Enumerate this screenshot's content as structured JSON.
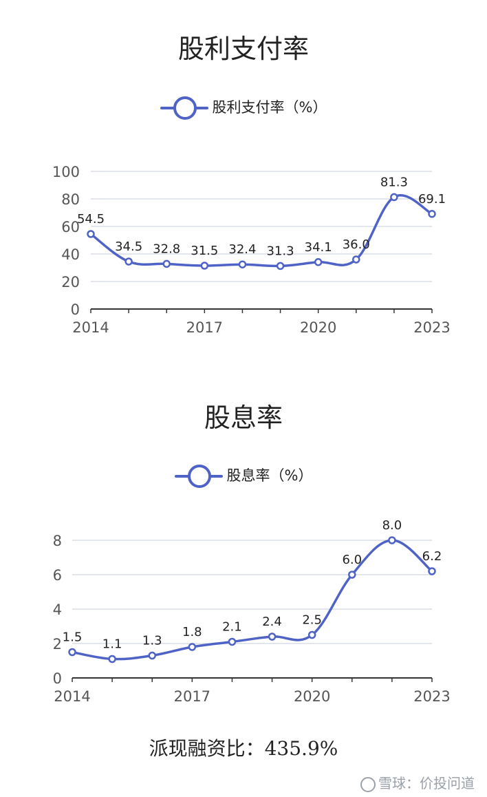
{
  "chart_data": [
    {
      "type": "line",
      "title": "股利支付率",
      "series": [
        {
          "name": "股利支付率（%）",
          "values": [
            54.5,
            34.5,
            32.8,
            31.5,
            32.4,
            31.3,
            34.1,
            36.0,
            81.3,
            69.1
          ]
        }
      ],
      "x": [
        2014,
        2015,
        2016,
        2017,
        2018,
        2019,
        2020,
        2021,
        2022,
        2023
      ],
      "x_tick_labels": [
        "2014",
        "2017",
        "2020",
        "2023"
      ],
      "y_tick_labels": [
        "0",
        "20",
        "40",
        "60",
        "80",
        "100"
      ],
      "ylim": [
        0,
        100
      ],
      "data_labels": [
        "54.5",
        "34.5",
        "32.8",
        "31.5",
        "32.4",
        "31.3",
        "34.1",
        "36.0",
        "81.3",
        "69.1"
      ],
      "grid": true,
      "legend": "top-center",
      "color": "#4f63c6"
    },
    {
      "type": "line",
      "title": "股息率",
      "series": [
        {
          "name": "股息率（%）",
          "values": [
            1.5,
            1.1,
            1.3,
            1.8,
            2.1,
            2.4,
            2.5,
            6.0,
            8.0,
            6.2
          ]
        }
      ],
      "x": [
        2014,
        2015,
        2016,
        2017,
        2018,
        2019,
        2020,
        2021,
        2022,
        2023
      ],
      "x_tick_labels": [
        "2014",
        "2017",
        "2020",
        "2023"
      ],
      "y_tick_labels": [
        "0",
        "2",
        "4",
        "6",
        "8"
      ],
      "ylim": [
        0,
        8
      ],
      "data_labels": [
        "1.5",
        "1.1",
        "1.3",
        "1.8",
        "2.1",
        "2.4",
        "2.5",
        "6.0",
        "8.0",
        "6.2"
      ],
      "grid": true,
      "legend": "top-center",
      "color": "#4f63c6"
    }
  ],
  "footer": {
    "text": "派现融资比：435.9%"
  },
  "watermark": {
    "text": "雪球：价投问道",
    "icon": "snowball-logo-icon"
  }
}
